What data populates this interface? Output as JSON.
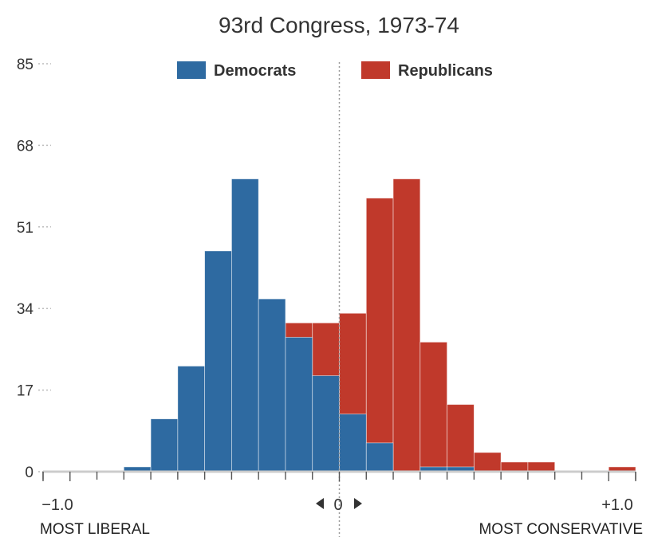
{
  "chart_data": {
    "type": "bar",
    "title": "93rd Congress, 1973-74",
    "xlim": [
      -1.1,
      1.1
    ],
    "ylim": [
      0,
      85
    ],
    "yticks": [
      0,
      17,
      34,
      51,
      68,
      85
    ],
    "xtick_labels": {
      "left": "−1.0",
      "center": "0",
      "right": "+1.0"
    },
    "x_end_labels": {
      "left": "MOST LIBERAL",
      "right": "MOST CONSERVATIVE"
    },
    "bin_edges": [
      -1.1,
      -1.0,
      -0.9,
      -0.8,
      -0.7,
      -0.6,
      -0.5,
      -0.4,
      -0.3,
      -0.2,
      -0.1,
      0.0,
      0.1,
      0.2,
      0.3,
      0.4,
      0.5,
      0.6,
      0.7,
      0.8,
      0.9,
      1.0,
      1.1
    ],
    "legend_position": "top-center",
    "series": [
      {
        "name": "Democrats",
        "color": "#2e6aa1",
        "values": [
          0,
          0,
          0,
          1,
          11,
          22,
          46,
          61,
          36,
          28,
          20,
          12,
          6,
          0,
          1,
          1,
          0,
          0,
          0,
          0,
          0,
          0
        ]
      },
      {
        "name": "Republicans",
        "color": "#c0392b",
        "values": [
          0,
          0,
          0,
          0,
          0,
          0,
          0,
          0,
          0,
          31,
          31,
          33,
          57,
          61,
          27,
          14,
          4,
          2,
          2,
          0,
          0,
          1
        ]
      }
    ]
  }
}
